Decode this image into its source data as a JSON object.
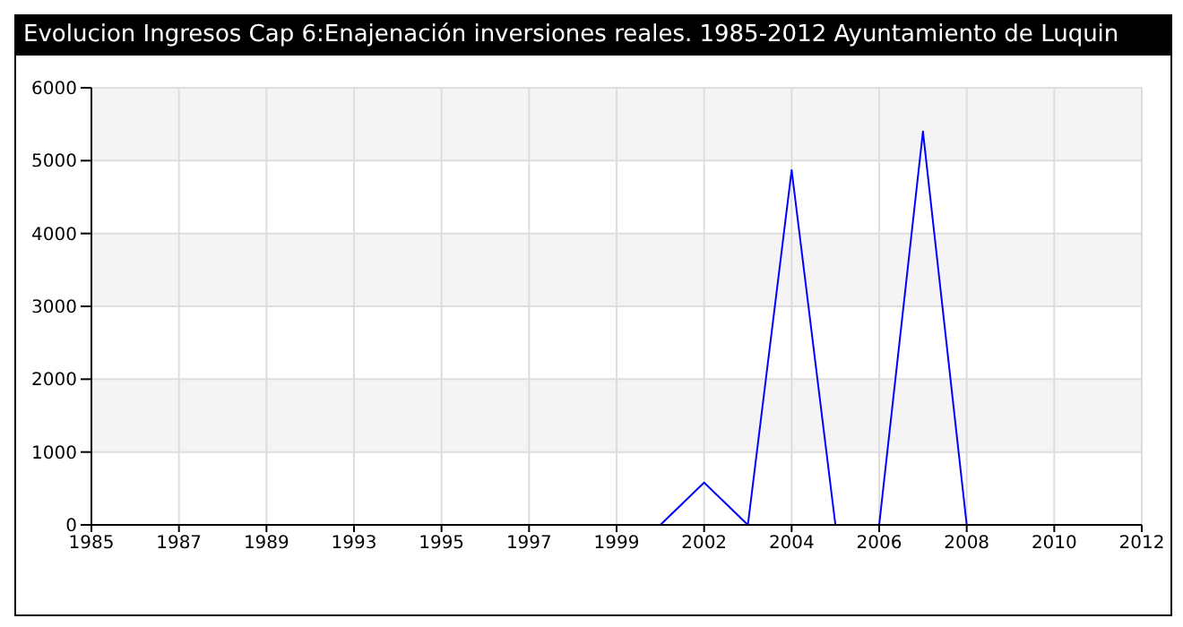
{
  "chart_data": {
    "type": "line",
    "title": "Evolucion Ingresos Cap 6:Enajenación inversiones reales. 1985-2012 Ayuntamiento de Luquin",
    "categories": [
      "1985",
      null,
      "1987",
      null,
      "1989",
      null,
      "1993",
      null,
      "1995",
      null,
      "1997",
      null,
      "1999",
      null,
      "2002",
      null,
      "2004",
      null,
      "2006",
      null,
      "2008",
      null,
      "2010",
      null,
      "2012"
    ],
    "series": [
      {
        "color": "#0000ff",
        "values": [
          null,
          null,
          null,
          null,
          null,
          null,
          null,
          null,
          null,
          null,
          null,
          null,
          null,
          0,
          580,
          0,
          4870,
          0,
          0,
          5400,
          0,
          null,
          null,
          null,
          null
        ]
      }
    ],
    "ylim": [
      0,
      6000
    ],
    "yticks": [
      0,
      1000,
      2000,
      3000,
      4000,
      5000,
      6000
    ],
    "grid": true,
    "marker": "none",
    "line_style": "solid"
  }
}
